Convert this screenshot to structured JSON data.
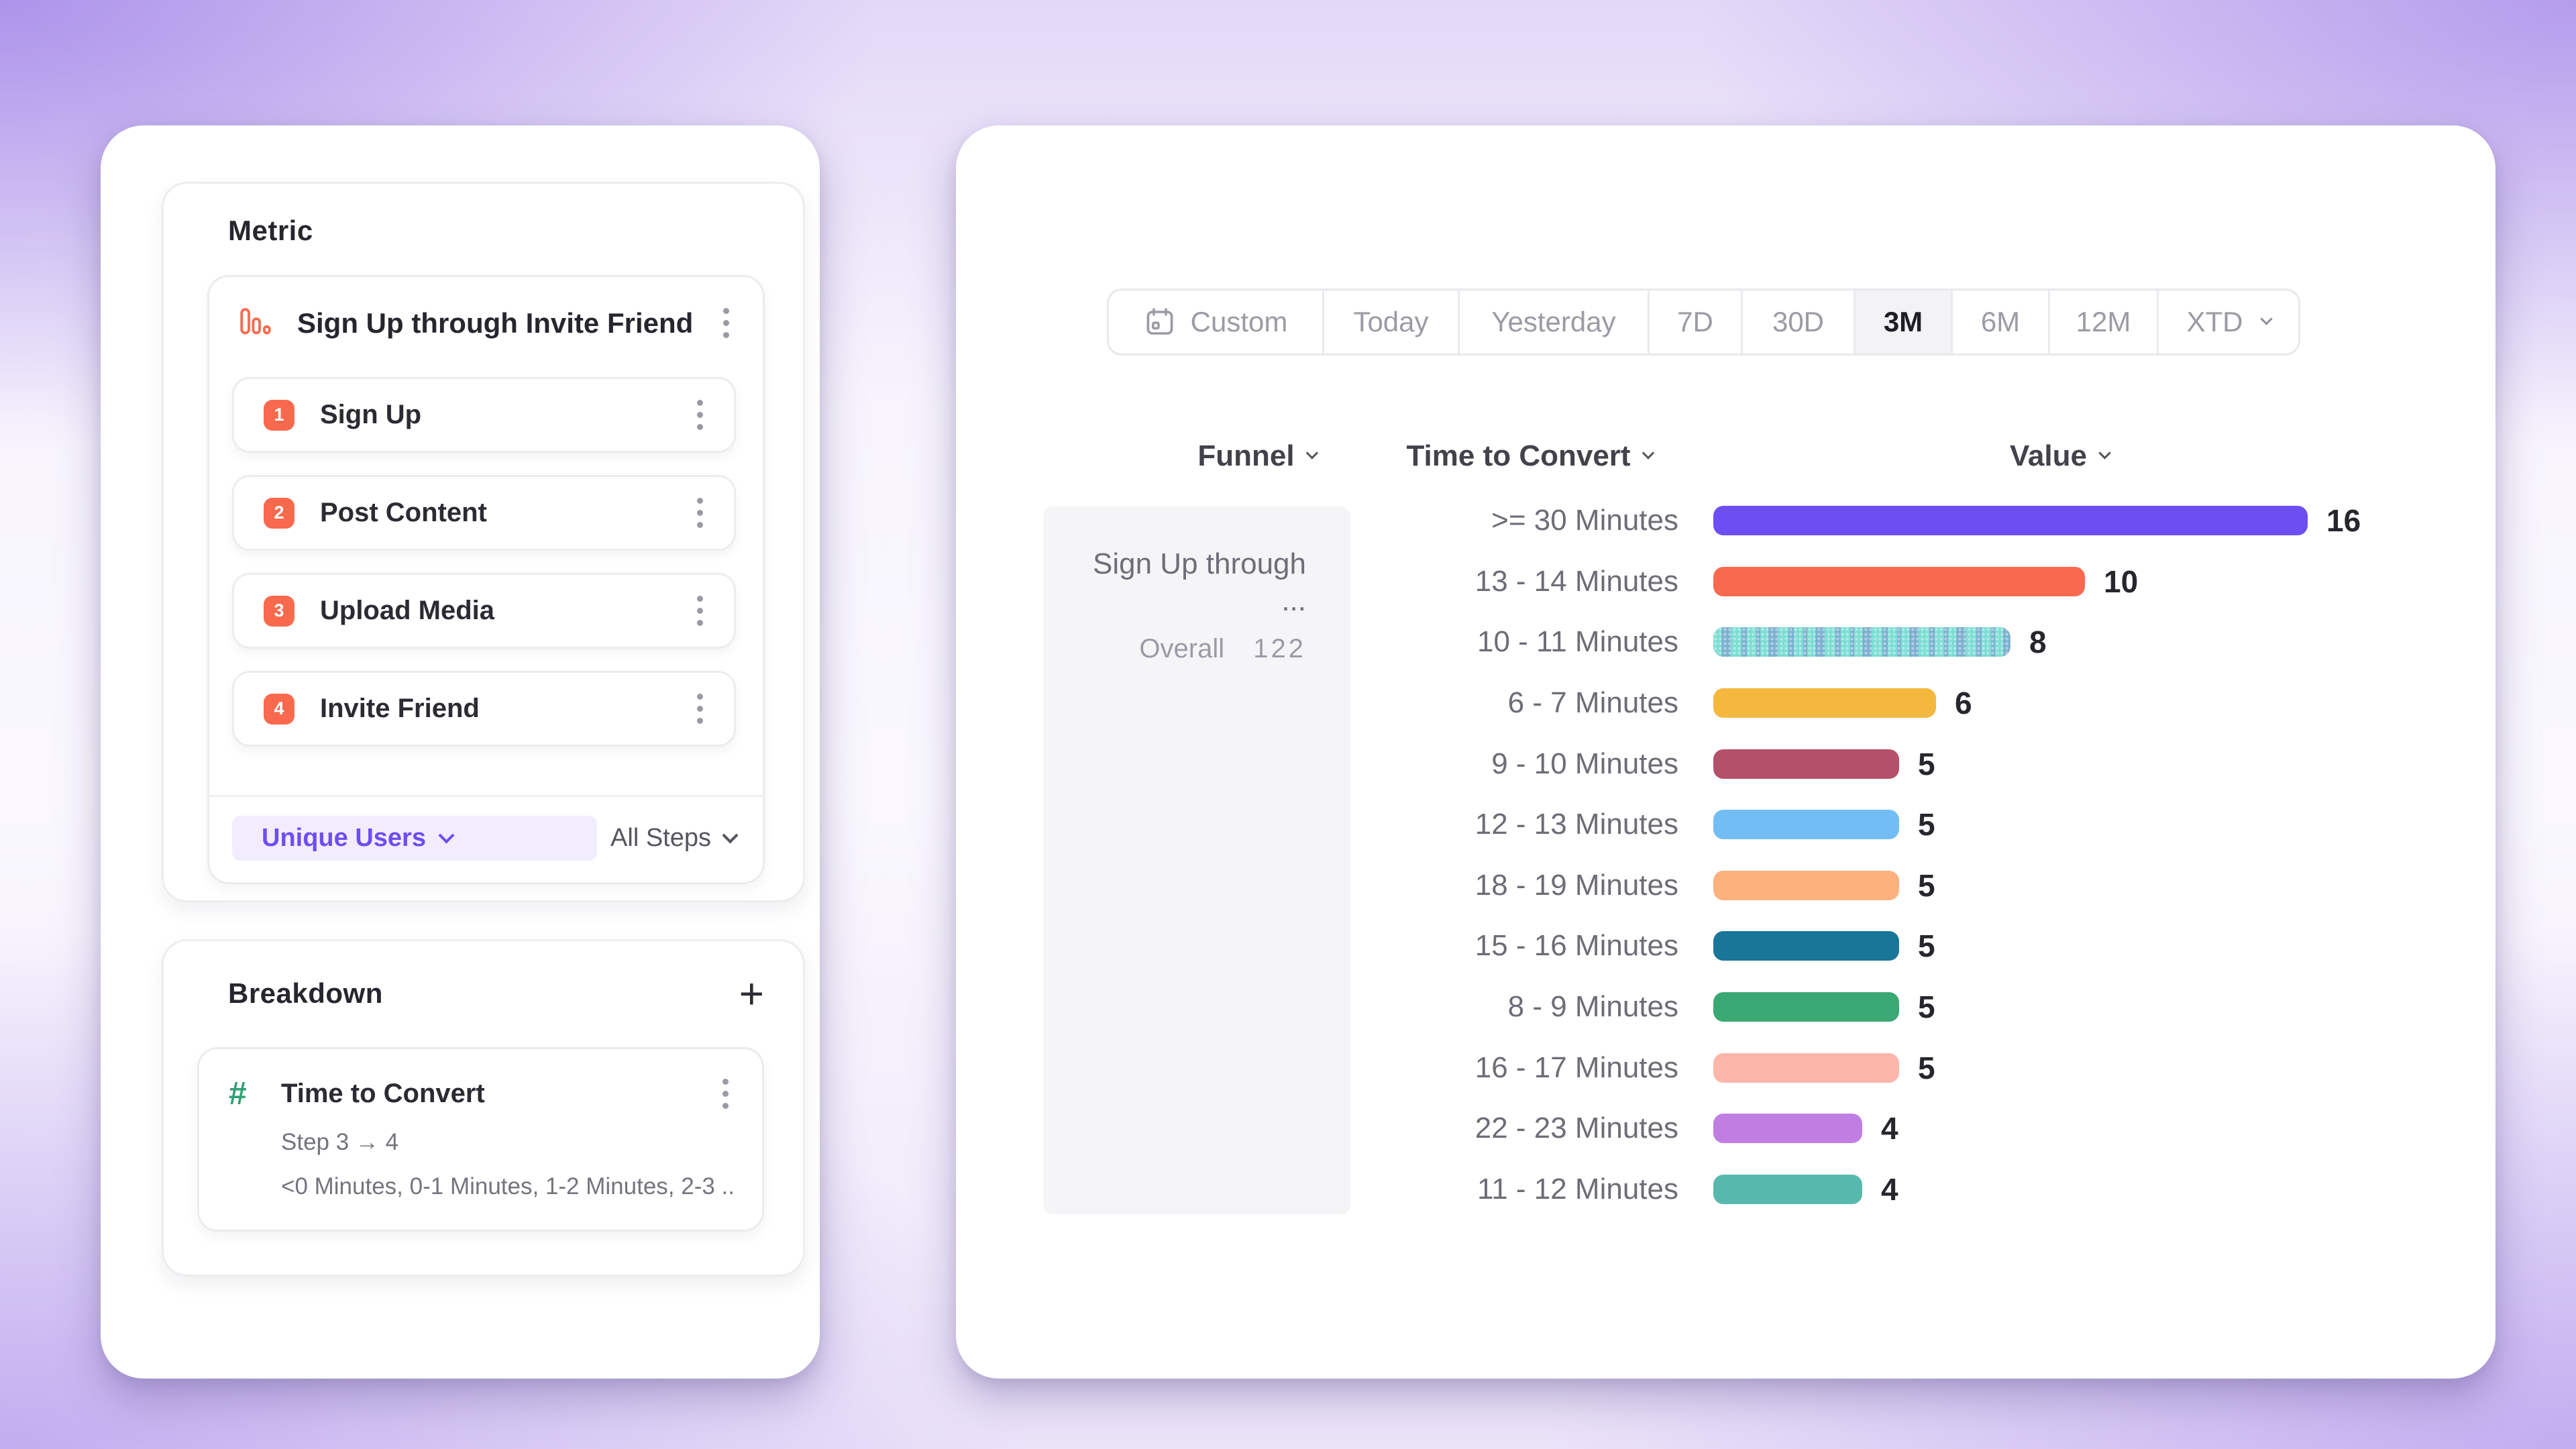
{
  "left_panel": {
    "metric_section": {
      "heading": "Metric",
      "funnel_card": {
        "title": "Sign Up through Invite Friend",
        "steps": [
          {
            "number": "1",
            "label": "Sign Up"
          },
          {
            "number": "2",
            "label": "Post Content"
          },
          {
            "number": "3",
            "label": "Upload Media"
          },
          {
            "number": "4",
            "label": "Invite Friend"
          }
        ],
        "counting_method": "Unique Users",
        "steps_scope": "All Steps"
      }
    },
    "breakdown_section": {
      "heading": "Breakdown",
      "add_button": "+",
      "property_card": {
        "title": "Time to Convert",
        "step_range": "Step 3 → 4",
        "buckets_preview": "<0 Minutes, 0-1 Minutes, 1-2 Minutes, 2-3 ..."
      }
    }
  },
  "right_panel": {
    "date_range": {
      "selected": "3M",
      "options": [
        {
          "label": "Custom",
          "icon": "calendar-icon"
        },
        {
          "label": "Today"
        },
        {
          "label": "Yesterday"
        },
        {
          "label": "7D"
        },
        {
          "label": "30D"
        },
        {
          "label": "3M",
          "selected": true
        },
        {
          "label": "6M"
        },
        {
          "label": "12M"
        },
        {
          "label": "XTD",
          "chevron": true
        }
      ]
    },
    "columns": {
      "funnel": "Funnel",
      "time_to_convert": "Time to Convert",
      "value": "Value"
    },
    "funnel_cell": {
      "title": "Sign Up through ...",
      "overall_label": "Overall",
      "overall_value": "122"
    }
  },
  "chart_data": {
    "type": "bar",
    "orientation": "horizontal",
    "title": "",
    "xlabel": "Value",
    "ylabel": "Time to Convert",
    "xlim": [
      0,
      16
    ],
    "grid": false,
    "categories": [
      ">= 30 Minutes",
      "13 - 14 Minutes",
      "10 - 11 Minutes",
      "6 - 7 Minutes",
      "9 - 10 Minutes",
      "12 - 13 Minutes",
      "18 - 19 Minutes",
      "15 - 16 Minutes",
      "8 - 9 Minutes",
      "16 - 17 Minutes",
      "22 - 23 Minutes",
      "11 - 12 Minutes"
    ],
    "values": [
      16,
      10,
      8,
      6,
      5,
      5,
      5,
      5,
      5,
      5,
      4,
      4
    ],
    "colors": [
      "#6C4EF3",
      "#F9694D",
      "#7CDDD3",
      "#F5B83F",
      "#B5506B",
      "#72BEF4",
      "#FDB17C",
      "#1A7699",
      "#3AA873",
      "#FCB6AA",
      "#C07EE2",
      "#57B9AE"
    ],
    "striped_index": 2
  },
  "colors": {
    "accent_purple": "#6C4EF3",
    "accent_coral": "#F9694D",
    "hash_green": "#2FA173",
    "pill_bg": "#f1edfd",
    "selected_segment_bg": "#f3f3f5"
  }
}
